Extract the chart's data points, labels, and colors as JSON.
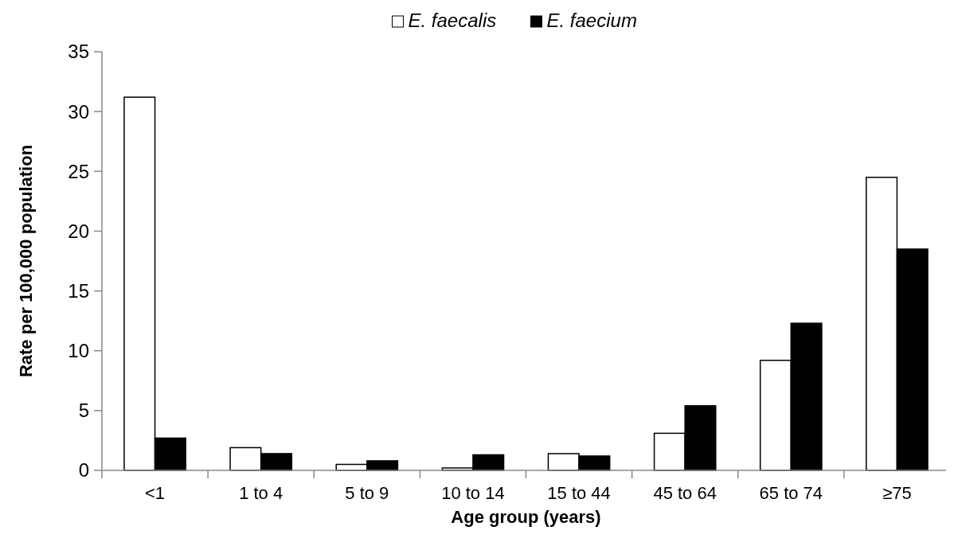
{
  "chart_data": {
    "type": "bar",
    "xlabel": "Age group (years)",
    "ylabel": "Rate per 100,000 population",
    "categories": [
      "<1",
      "1 to 4",
      "5 to 9",
      "10 to 14",
      "15 to 44",
      "45 to 64",
      "65 to 74",
      "≥75"
    ],
    "series": [
      {
        "name": "E. faecalis",
        "color": "#ffffff",
        "values": [
          31.2,
          1.9,
          0.5,
          0.2,
          1.4,
          3.1,
          9.2,
          24.5
        ]
      },
      {
        "name": "E. faecium",
        "color": "#000000",
        "values": [
          2.7,
          1.4,
          0.8,
          1.3,
          1.2,
          5.4,
          12.3,
          18.5
        ]
      }
    ],
    "ylim": [
      0,
      35
    ],
    "yticks": [
      0,
      5,
      10,
      15,
      20,
      25,
      30,
      35
    ],
    "grid": false,
    "legend": "top"
  }
}
